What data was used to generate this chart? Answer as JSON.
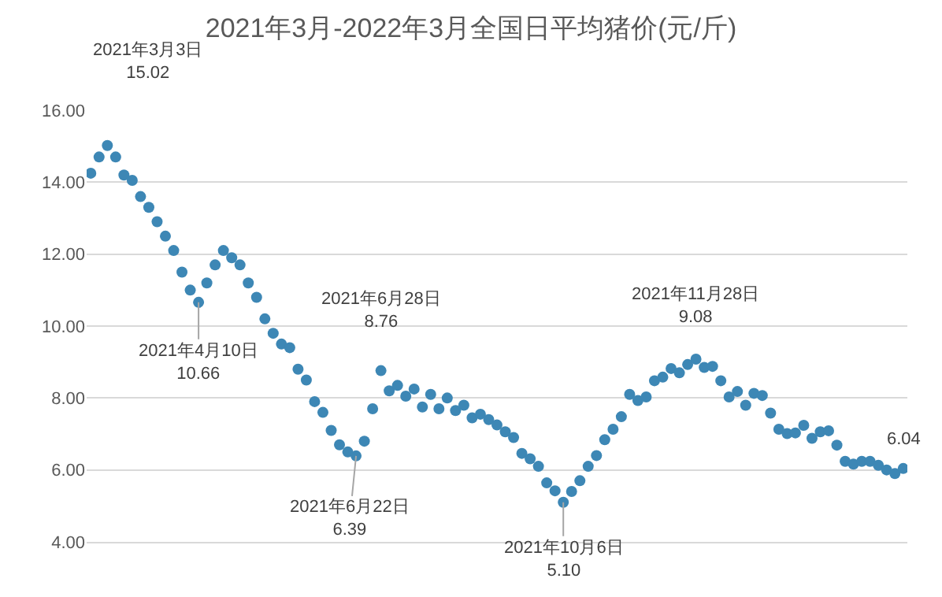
{
  "chart_data": {
    "type": "scatter",
    "title": "2021年3月-2022年3月全国日平均猪价(元/斤)",
    "categories": [
      null,
      null,
      null,
      null,
      null,
      null,
      null,
      null,
      null,
      null,
      null,
      null,
      null,
      null,
      null,
      null,
      null,
      null,
      null,
      null,
      null,
      null,
      null,
      null,
      null,
      null,
      null,
      null,
      null,
      null,
      null,
      null,
      null,
      null,
      null,
      null,
      null,
      null,
      null,
      null,
      null,
      null,
      null,
      null,
      null,
      null,
      null,
      null,
      null,
      null,
      null,
      null,
      null,
      null,
      null,
      null,
      null,
      null,
      null,
      null,
      null,
      null,
      null,
      null,
      null,
      null,
      null,
      null,
      null,
      null,
      null,
      null,
      null,
      null,
      null,
      null,
      null,
      null,
      null,
      null,
      null,
      null,
      null,
      null,
      null,
      null,
      null,
      null,
      null,
      null,
      null,
      null,
      null,
      null,
      null,
      null,
      null,
      null,
      null
    ],
    "series": [
      {
        "color": "#3d87b5",
        "values": [
          14.25,
          14.7,
          15.02,
          14.7,
          14.2,
          14.05,
          13.6,
          13.3,
          12.9,
          12.5,
          12.1,
          11.5,
          11.0,
          10.66,
          11.2,
          11.7,
          12.1,
          11.9,
          11.7,
          11.2,
          10.8,
          10.2,
          9.8,
          9.5,
          9.4,
          8.8,
          8.5,
          7.9,
          7.6,
          7.1,
          6.7,
          6.5,
          6.39,
          6.8,
          7.7,
          8.76,
          8.2,
          8.35,
          8.05,
          8.25,
          7.75,
          8.1,
          7.7,
          8.0,
          7.65,
          7.8,
          7.45,
          7.55,
          7.4,
          7.25,
          7.06,
          6.9,
          6.46,
          6.31,
          6.1,
          5.64,
          5.42,
          5.1,
          5.4,
          5.7,
          6.1,
          6.4,
          6.84,
          7.13,
          7.48,
          8.1,
          7.93,
          8.03,
          8.48,
          8.58,
          8.82,
          8.7,
          8.93,
          9.08,
          8.85,
          8.88,
          8.48,
          8.03,
          8.18,
          7.8,
          8.13,
          8.07,
          7.58,
          7.13,
          7.01,
          7.03,
          7.24,
          6.88,
          7.06,
          7.09,
          6.69,
          6.24,
          6.16,
          6.24,
          6.24,
          6.13,
          6.0,
          5.9,
          6.04
        ]
      }
    ],
    "ylim": [
      4,
      16
    ],
    "yticks": [
      {
        "value": 4,
        "label": "4.00"
      },
      {
        "value": 6,
        "label": "6.00"
      },
      {
        "value": 8,
        "label": "8.00"
      },
      {
        "value": 10,
        "label": "10.00"
      },
      {
        "value": 12,
        "label": "12.00"
      },
      {
        "value": 14,
        "label": "14.00"
      },
      {
        "value": 16,
        "label": "16.00"
      }
    ],
    "grid": "y",
    "tick_labels": "y",
    "marker": "circle",
    "annotations": [
      "2021年3月3日\n15.02",
      {
        "text": "2021年4月10日\n10.66",
        "y": 10.66
      },
      {
        "text": "2021年6月28日\n8.76",
        "y": 8.76
      },
      {
        "text": "2021年6月22日\n6.39",
        "y": 6.39
      },
      {
        "text": "2021年10月6日\n5.10",
        "y": 5.1
      },
      {
        "text": "2021年11月28日\n9.08",
        "y": 9.08
      },
      {
        "text": "6.04",
        "y": 6.04
      }
    ]
  }
}
